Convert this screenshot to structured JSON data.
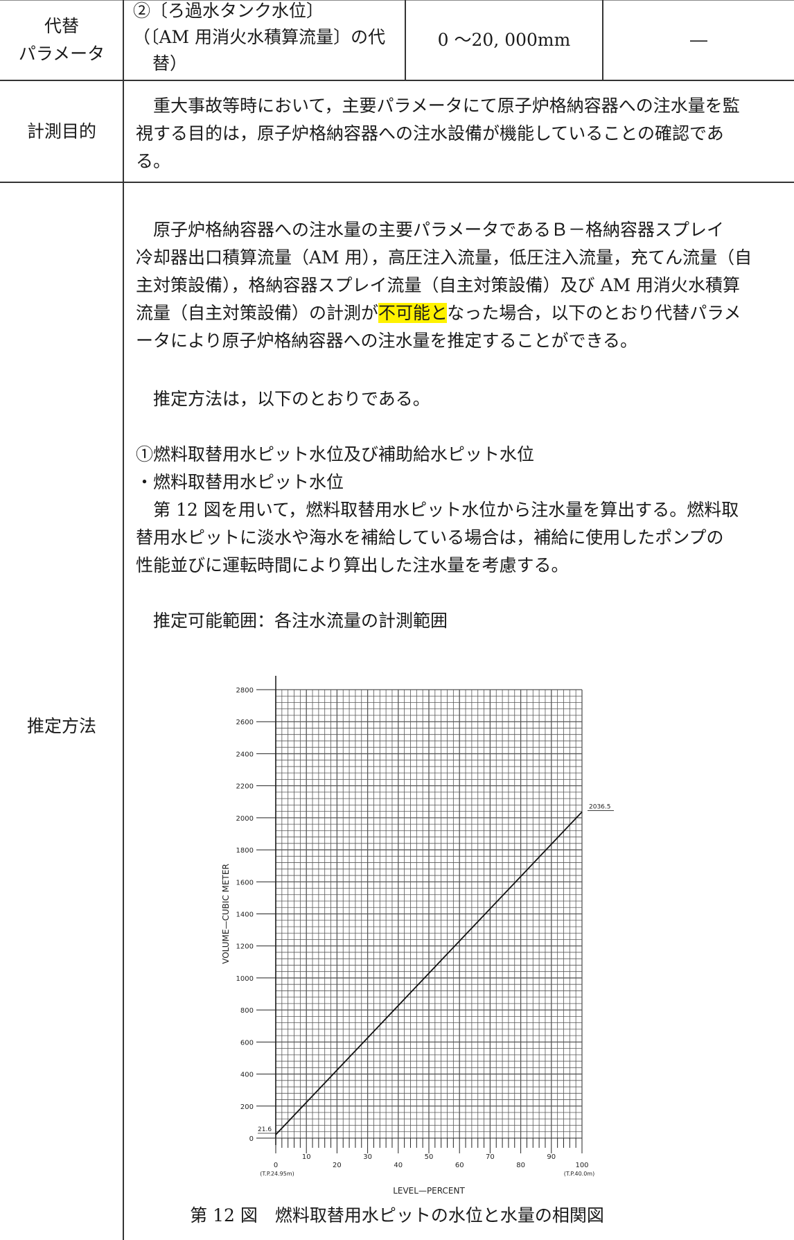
{
  "row1": {
    "label_line1": "代替",
    "label_line2": "パラメータ",
    "param_line1": "②〔ろ過水タンク水位〕",
    "param_line2": "（〔AM 用消火水積算流量〕の代",
    "param_line3": "替）",
    "range": "0 ～20, 000mm",
    "dash": "―"
  },
  "row2": {
    "label": "計測目的",
    "text_line1": "重大事故等時において，主要パラメータにて原子炉格納容器への注水量を監",
    "text_line2": "視する目的は，原子炉格納容器への注水設備が機能していることの確認であ",
    "text_line3": "る。"
  },
  "row3": {
    "label": "推定方法",
    "p1_line1": "原子炉格納容器への注水量の主要パラメータであるＢ－格納容器スプレイ",
    "p1_line2": "冷却器出口積算流量（AM 用），高圧注入流量，低圧注入流量，充てん流量（自",
    "p1_line3": "主対策設備），格納容器スプレイ流量（自主対策設備）及び AM 用消火水積算",
    "p1_line4_a": "流量（自主対策設備）の計測が",
    "p1_line4_hl": "不可能と",
    "p1_line4_b": "なった場合，以下のとおり代替パラメ",
    "p1_line5": "ータにより原子炉格納容器への注水量を推定することができる。",
    "p2": "推定方法は，以下のとおりである。",
    "item_heading": "①燃料取替用水ピット水位及び補助給水ピット水位",
    "item_bullet": "・燃料取替用水ピット水位",
    "p3_line1": "第 12 図を用いて，燃料取替用水ピット水位から注水量を算出する。燃料取",
    "p3_line2": "替用水ピットに淡水や海水を補給している場合は，補給に使用したポンプの",
    "p3_line3": "性能並びに運転時間により算出した注水量を考慮する。",
    "p4": "推定可能範囲：各注水流量の計測範囲",
    "caption": "第 12 図　燃料取替用水ピットの水位と水量の相関図"
  },
  "chart_data": {
    "type": "line",
    "xlabel": "LEVEL—PERCENT",
    "ylabel": "VOLUME—CUBIC METER",
    "x_ticks": [
      "0",
      "10",
      "20",
      "30",
      "40",
      "50",
      "60",
      "70",
      "80",
      "90",
      "100"
    ],
    "y_ticks": [
      "0",
      "200",
      "400",
      "600",
      "800",
      "1000",
      "1200",
      "1400",
      "1600",
      "1800",
      "2000",
      "2200",
      "2400",
      "2600",
      "2800"
    ],
    "x_start_note": "(T.P.24.95m)",
    "x_end_note": "(T.P.40.0m)",
    "xlim": [
      0,
      100
    ],
    "ylim": [
      0,
      2800
    ],
    "grid": true,
    "series": [
      {
        "x": [
          0,
          100
        ],
        "y": [
          21.6,
          2036.5
        ]
      }
    ],
    "annotations": {
      "start_value": "21.6",
      "end_value": "2036.5"
    }
  }
}
